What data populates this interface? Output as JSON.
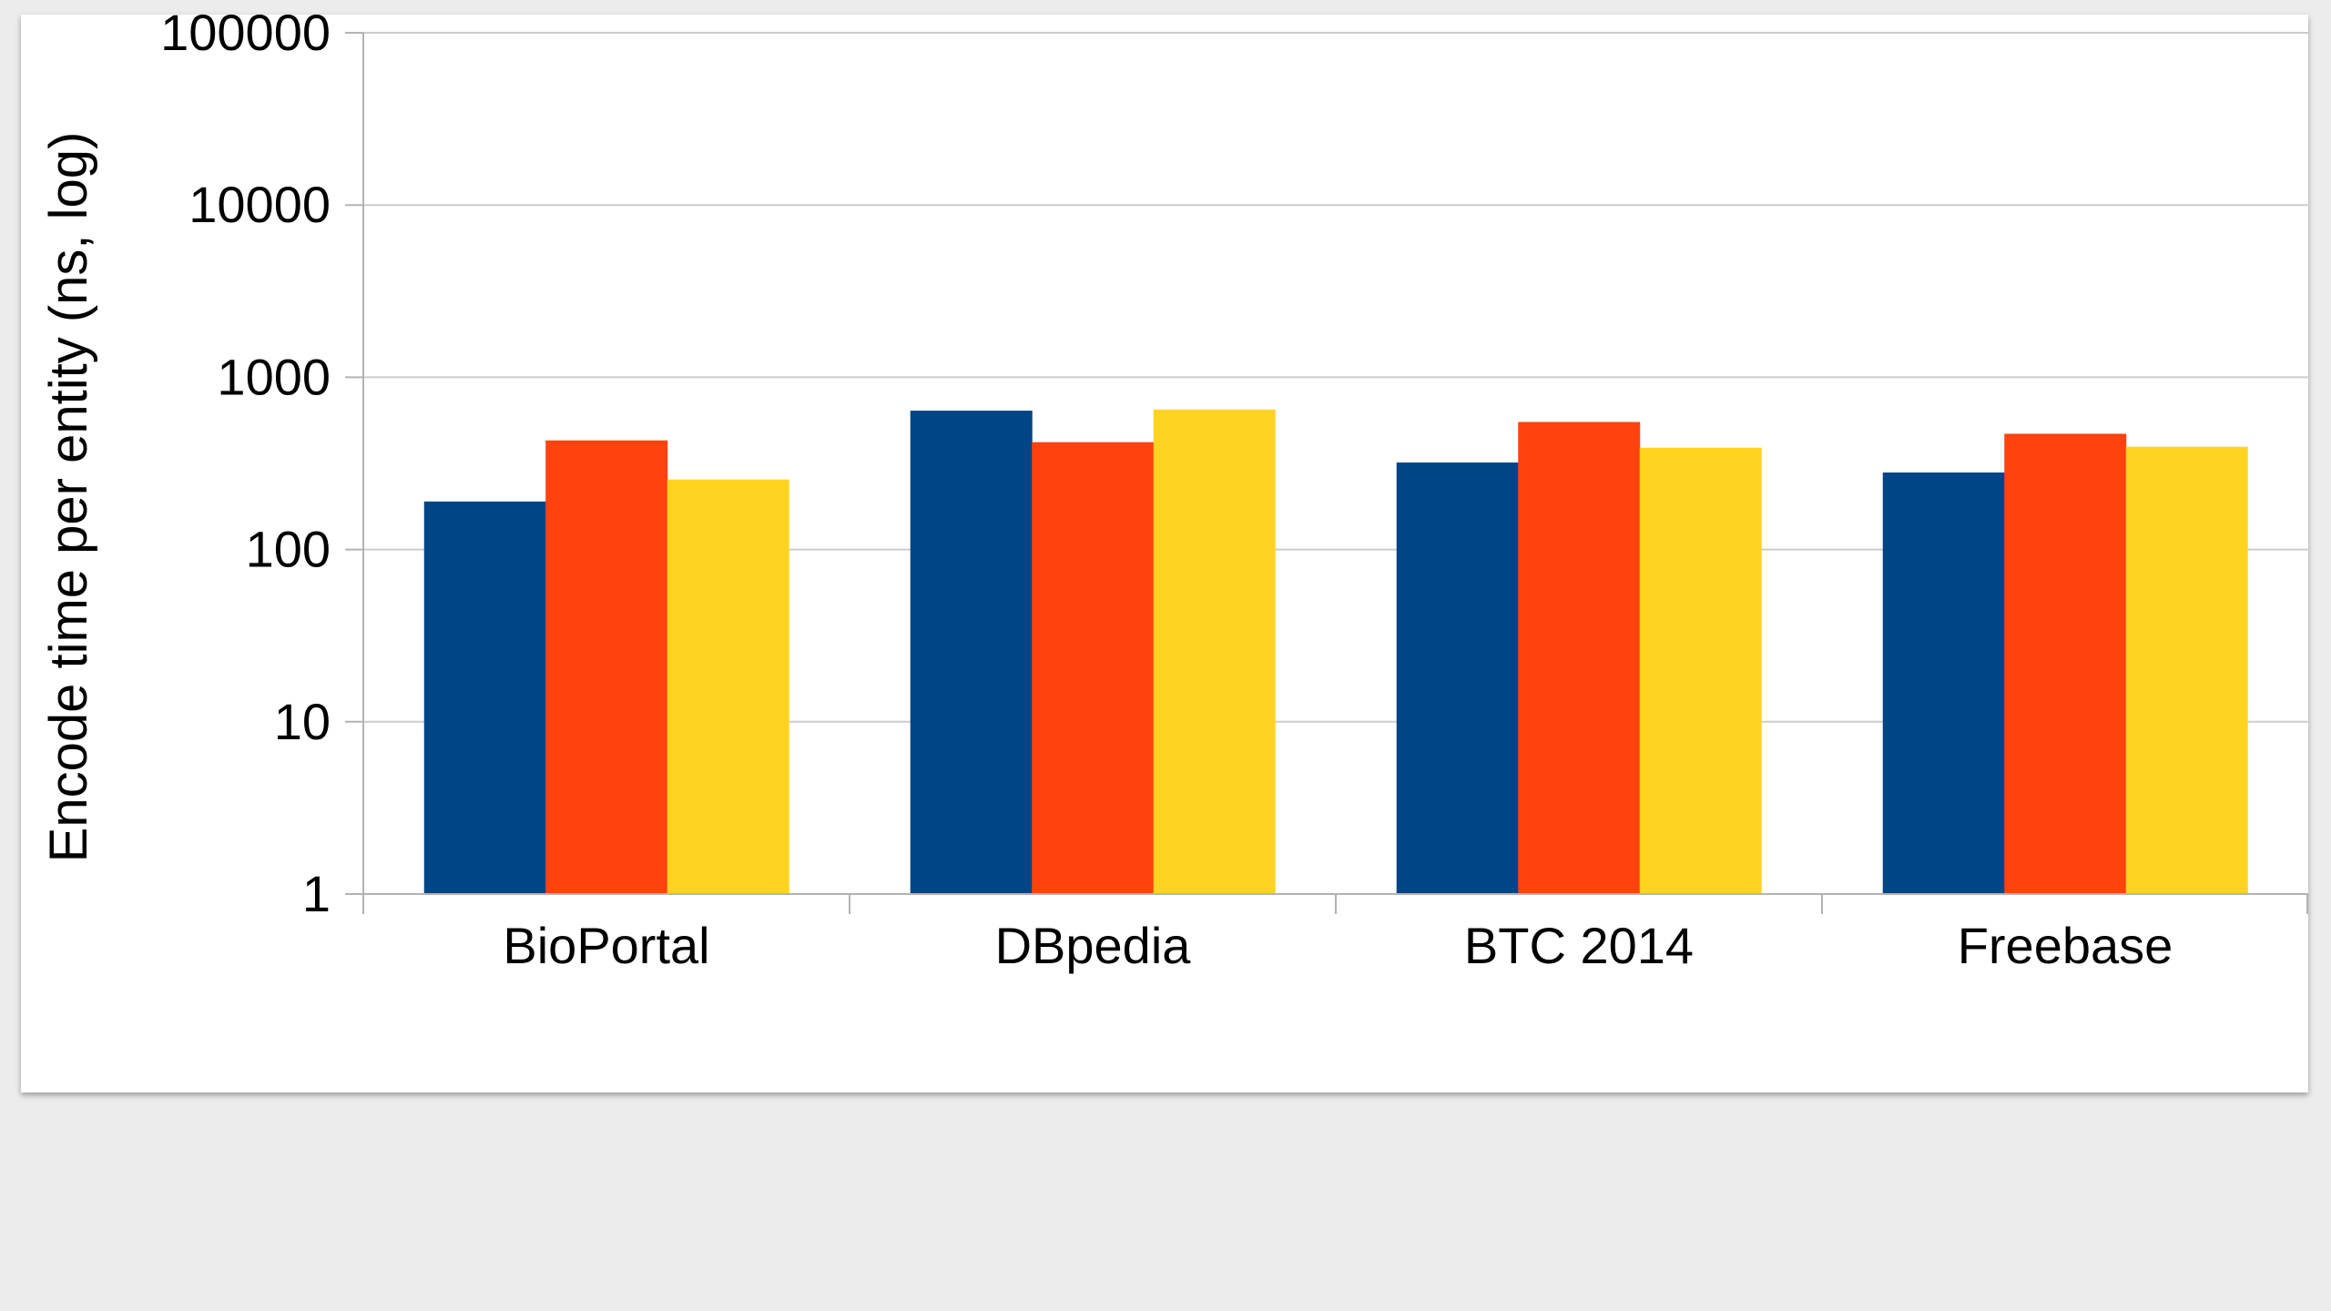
{
  "chart_data": {
    "type": "bar",
    "categories": [
      "BioPortal",
      "DBpedia",
      "BTC 2014",
      "Freebase"
    ],
    "series": [
      {
        "color": "#004586",
        "values": [
          190,
          640,
          320,
          280
        ]
      },
      {
        "color": "#ff420e",
        "values": [
          430,
          420,
          550,
          470
        ]
      },
      {
        "color": "#ffd320",
        "values": [
          255,
          650,
          390,
          395
        ]
      }
    ],
    "y_scale": "log",
    "ylim": [
      1,
      100000
    ],
    "y_ticks": [
      1,
      10,
      100,
      1000,
      10000,
      100000
    ],
    "y_tick_labels": [
      "1",
      "10",
      "100",
      "1000",
      "10000",
      "100000"
    ],
    "xlabel": "",
    "ylabel": "Encode time per entity (ns, log)",
    "grid": true,
    "legend": "none",
    "gridline_color": "#cccccc",
    "axis_color": "#b3b3b3"
  }
}
